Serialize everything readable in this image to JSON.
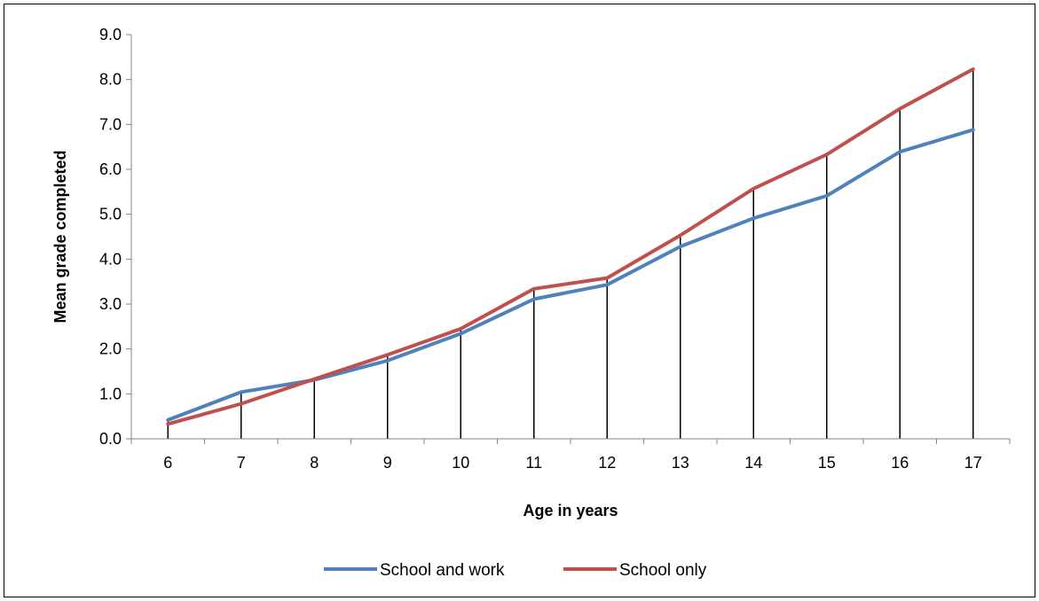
{
  "chart_data": {
    "type": "line",
    "xlabel": "Age in years",
    "ylabel": "Mean grade completed",
    "categories": [
      "6",
      "7",
      "8",
      "9",
      "10",
      "11",
      "12",
      "13",
      "14",
      "15",
      "16",
      "17"
    ],
    "ylim": [
      0,
      9
    ],
    "yticks": [
      "0.0",
      "1.0",
      "2.0",
      "3.0",
      "4.0",
      "5.0",
      "6.0",
      "7.0",
      "8.0",
      "9.0"
    ],
    "grid": false,
    "drop_lines": true,
    "legend_position": "bottom",
    "series": [
      {
        "name": "School and work",
        "color": "#4F81BD",
        "values": [
          0.42,
          1.04,
          1.31,
          1.74,
          2.34,
          3.11,
          3.43,
          4.28,
          4.91,
          5.41,
          6.39,
          6.88
        ]
      },
      {
        "name": "School only",
        "color": "#C0504D",
        "values": [
          0.33,
          0.78,
          1.33,
          1.87,
          2.45,
          3.34,
          3.58,
          4.53,
          5.57,
          6.33,
          7.35,
          8.23
        ]
      }
    ]
  }
}
